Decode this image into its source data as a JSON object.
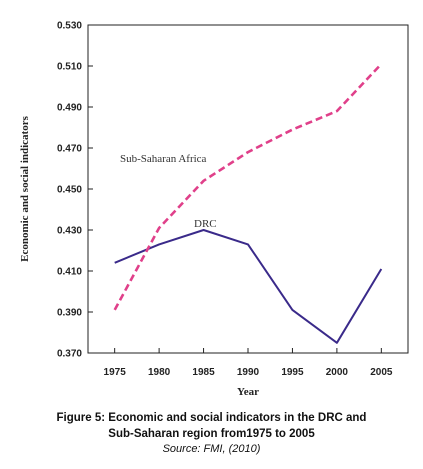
{
  "chart_data": {
    "type": "line",
    "x": [
      1975,
      1980,
      1985,
      1990,
      1995,
      2000,
      2005
    ],
    "xlabel": "Year",
    "ylabel": "Economic and social indicators",
    "ylim": [
      0.37,
      0.53
    ],
    "y_ticks": [
      "0.370",
      "0.390",
      "0.410",
      "0.430",
      "0.450",
      "0.470",
      "0.490",
      "0.510",
      "0.530"
    ],
    "x_ticks": [
      "1975",
      "1980",
      "1985",
      "1990",
      "1995",
      "2000",
      "2005"
    ],
    "grid": false,
    "series": [
      {
        "name": "DRC",
        "values": [
          0.414,
          0.423,
          0.43,
          0.423,
          0.391,
          0.375,
          0.411
        ],
        "color": "#3a2a8a",
        "style": "solid"
      },
      {
        "name": "Sub-Saharan Africa",
        "values": [
          0.391,
          0.431,
          0.454,
          0.468,
          0.479,
          0.488,
          0.511
        ],
        "color": "#e0408a",
        "style": "dashed"
      }
    ]
  },
  "caption": {
    "line1": "Figure 5: Economic and social indicators in the DRC and",
    "line2": "Sub-Saharan region from1975 to 2005",
    "source": "Source: FMI, (2010)"
  }
}
